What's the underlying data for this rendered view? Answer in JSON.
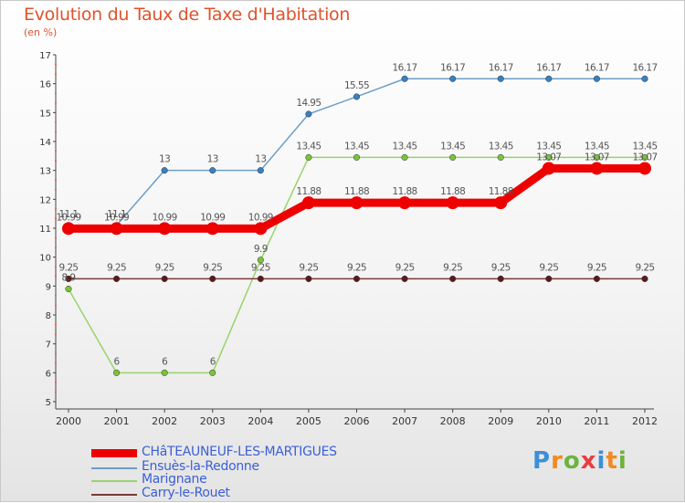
{
  "title": "Evolution du Taux de Taxe d'Habitation",
  "unit_label": "(en %)",
  "logo": {
    "parts": [
      "P",
      "r",
      "o",
      "x",
      "i",
      "t",
      "i"
    ],
    "colors": [
      "#3c8fd8",
      "#f08a24",
      "#6cb33f",
      "#e83e3e",
      "#3c8fd8",
      "#f08a24",
      "#6cb33f"
    ]
  },
  "chart_data": {
    "type": "line",
    "title": "Evolution du Taux de Taxe d'Habitation",
    "ylabel": "(en %)",
    "xlabel": "",
    "categories": [
      "2000",
      "2001",
      "2002",
      "2003",
      "2004",
      "2005",
      "2006",
      "2007",
      "2008",
      "2009",
      "2010",
      "2011",
      "2012"
    ],
    "ylim": [
      5,
      17
    ],
    "yticks": [
      5,
      6,
      7,
      8,
      9,
      10,
      11,
      12,
      13,
      14,
      15,
      16,
      17
    ],
    "grid": false,
    "legend_position": "bottom-left",
    "series": [
      {
        "name": "CHâTEAUNEUF-LES-MARTIGUES",
        "color": "#ee0000",
        "thick": true,
        "values": [
          10.99,
          10.99,
          10.99,
          10.99,
          10.99,
          11.88,
          11.88,
          11.88,
          11.88,
          11.88,
          13.07,
          13.07,
          13.07
        ],
        "labels": [
          "10.99",
          "10.99",
          "10.99",
          "10.99",
          "10.99",
          "11.88",
          "11.88",
          "11.88",
          "11.88",
          "11.88",
          "13.07",
          "13.07",
          "13.07"
        ]
      },
      {
        "name": "Ensuès-la-Redonne",
        "color": "#6c9ec8",
        "point": "#3a7fc0",
        "thick": false,
        "values": [
          11.1,
          11.1,
          13,
          13,
          13,
          14.95,
          15.55,
          16.17,
          16.17,
          16.17,
          16.17,
          16.17,
          16.17
        ],
        "labels": [
          "11.1",
          "11.1",
          "13",
          "13",
          "13",
          "14.95",
          "15.55",
          "16.17",
          "16.17",
          "16.17",
          "16.17",
          "16.17",
          "16.17"
        ]
      },
      {
        "name": "Marignane",
        "color": "#9bd36b",
        "point": "#7cc23c",
        "thick": false,
        "values": [
          8.9,
          6,
          6,
          6,
          9.9,
          13.45,
          13.45,
          13.45,
          13.45,
          13.45,
          13.45,
          13.45,
          13.45
        ],
        "labels": [
          "8.9",
          "6",
          "6",
          "6",
          "9.9",
          "13.45",
          "13.45",
          "13.45",
          "13.45",
          "13.45",
          "13.45",
          "13.45",
          "13.45"
        ]
      },
      {
        "name": "Carry-le-Rouet",
        "color": "#7a3a3a",
        "point": "#5a1a1a",
        "thick": false,
        "values": [
          9.25,
          9.25,
          9.25,
          9.25,
          9.25,
          9.25,
          9.25,
          9.25,
          9.25,
          9.25,
          9.25,
          9.25,
          9.25
        ],
        "labels": [
          "9.25",
          "9.25",
          "9.25",
          "9.25",
          "9.25",
          "9.25",
          "9.25",
          "9.25",
          "9.25",
          "9.25",
          "9.25",
          "9.25",
          "9.25"
        ]
      }
    ]
  }
}
